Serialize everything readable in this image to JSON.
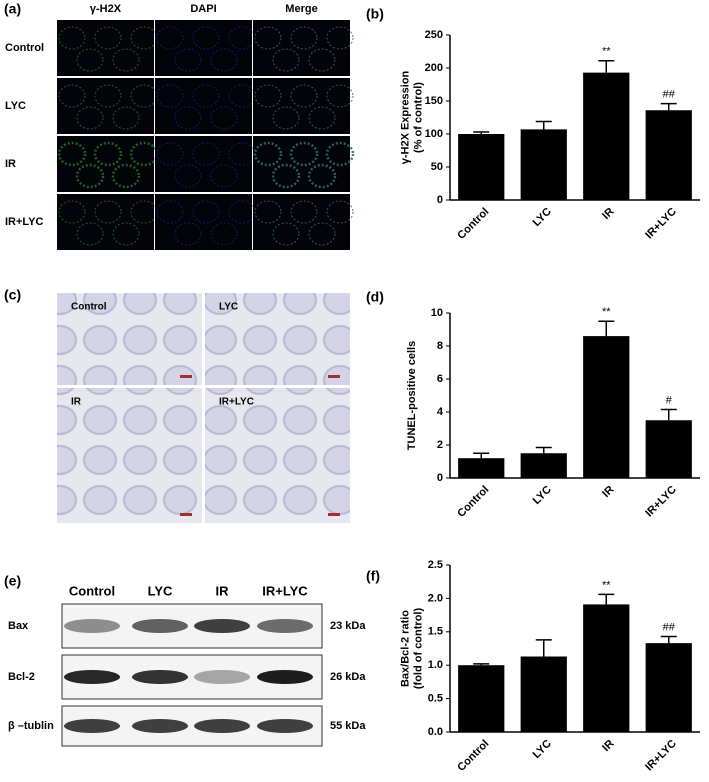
{
  "panel_a": {
    "label": "(a)",
    "columns": [
      "γ-H2X",
      "DAPI",
      "Merge"
    ],
    "rows": [
      "Control",
      "LYC",
      "IR",
      "IR+LYC"
    ]
  },
  "panel_c": {
    "label": "(c)",
    "images": [
      "Control",
      "LYC",
      "IR",
      "IR+LYC"
    ]
  },
  "panel_e": {
    "label": "(e)",
    "lanes": [
      "Control",
      "LYC",
      "IR",
      "IR+LYC"
    ],
    "proteins": [
      {
        "name": "Bax",
        "size": "23 kDa"
      },
      {
        "name": "Bcl-2",
        "size": "26 kDa"
      },
      {
        "name": "β –tublin",
        "size": "55 kDa"
      }
    ]
  },
  "chart_data": [
    {
      "type": "bar",
      "label": "(b)",
      "ylabel": [
        "γ-H2X Expression",
        "(% of control)"
      ],
      "categories": [
        "Control",
        "LYC",
        "IR",
        "IR+LYC"
      ],
      "values": [
        100,
        107,
        193,
        136
      ],
      "errors": [
        3,
        12,
        18,
        10
      ],
      "bar_labels": [
        null,
        null,
        "**",
        "##"
      ],
      "color": "#000000",
      "ylim": [
        0,
        250
      ],
      "yticks": [
        0,
        50,
        100,
        150,
        200,
        250
      ]
    },
    {
      "type": "bar",
      "label": "(d)",
      "ylabel": [
        "TUNEL-positive cells"
      ],
      "categories": [
        "Control",
        "LYC",
        "IR",
        "IR+LYC"
      ],
      "values": [
        1.2,
        1.5,
        8.6,
        3.5
      ],
      "errors": [
        0.3,
        0.35,
        0.9,
        0.65
      ],
      "bar_labels": [
        null,
        null,
        "**",
        "#"
      ],
      "color": "#000000",
      "ylim": [
        0,
        10
      ],
      "yticks": [
        0,
        2,
        4,
        6,
        8,
        10
      ]
    },
    {
      "type": "bar",
      "label": "(f)",
      "ylabel": [
        "Bax/Bcl-2 ratio",
        "(fold of control)"
      ],
      "categories": [
        "Control",
        "LYC",
        "IR",
        "IR+LYC"
      ],
      "values": [
        1.0,
        1.13,
        1.91,
        1.33
      ],
      "errors": [
        0.02,
        0.25,
        0.15,
        0.1
      ],
      "bar_labels": [
        null,
        null,
        "**",
        "##"
      ],
      "color": "#000000",
      "ylim": [
        0,
        2.5
      ],
      "yticks": [
        {
          "value": 0,
          "label": "0.0"
        },
        0.5,
        {
          "value": 1,
          "label": "1.0"
        },
        1.5,
        {
          "value": 2,
          "label": "2.0"
        },
        2.5
      ]
    }
  ]
}
